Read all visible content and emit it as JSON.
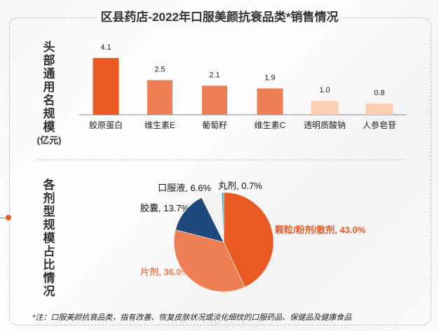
{
  "title": "区县药店-2022年口服美颜抗衰品类*销售情况",
  "chart_data": [
    {
      "type": "bar",
      "ylabel": "头部通用名规模(亿元)",
      "categories": [
        "胶原蛋白",
        "维生素E",
        "葡萄籽",
        "维生素C",
        "透明质酸钠",
        "人参皂苷"
      ],
      "values": [
        4.1,
        2.5,
        2.1,
        1.9,
        1.0,
        0.8
      ],
      "data_labels": [
        "4.1",
        "2.5",
        "2.1",
        "1.9",
        "1.0",
        "0.8"
      ],
      "colors": [
        "#E85A22",
        "#EE7F55",
        "#EE7F55",
        "#EE7F55",
        "#FCCEB0",
        "#FCCEB0"
      ],
      "grid": false
    },
    {
      "type": "pie",
      "ylabel": "各剂型规模占比情况",
      "slices": [
        {
          "label": "颗粒/粉剂/散剂, 43.0%",
          "value": 43.0,
          "color": "#E85A22",
          "label_color": "#E85A22"
        },
        {
          "label": "片剂, 36.0%",
          "value": 36.0,
          "color": "#EE7F55",
          "label_color": "#EE7F55"
        },
        {
          "label": "胶囊, 13.7%",
          "value": 13.7,
          "color": "#1F497D",
          "label_color": "#111111"
        },
        {
          "label": "口服液, 6.6%",
          "value": 6.6,
          "color": "#F2F2F2",
          "label_color": "#111111"
        },
        {
          "label": "丸剂, 0.7%",
          "value": 0.7,
          "color": "#4BACC6",
          "label_color": "#111111"
        }
      ]
    }
  ],
  "note": "*注：口服美颜抗衰品类，指有改善、恢复皮肤状况或淡化细纹的口服药品、保健品及健康食品"
}
